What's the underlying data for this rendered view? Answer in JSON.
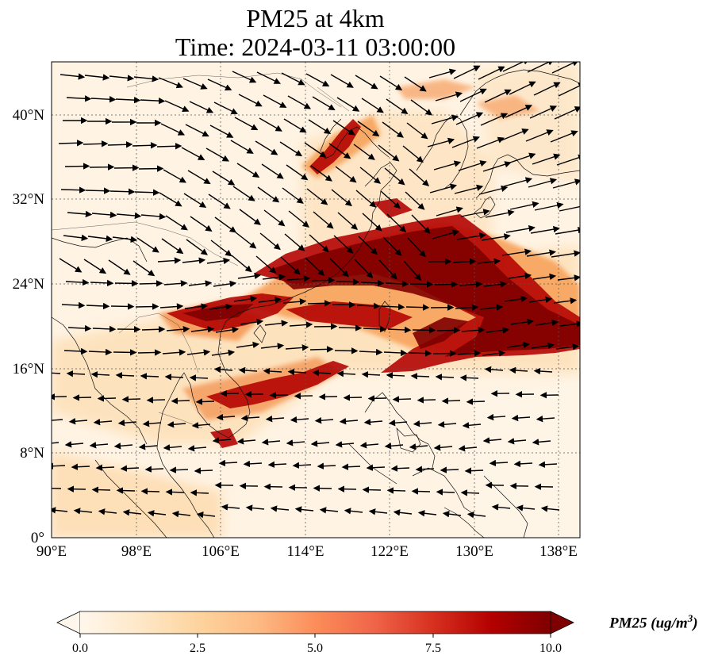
{
  "title": {
    "line1": "PM25 at 4km",
    "line2": "Time: 2024-03-11 03:00:00"
  },
  "map": {
    "projection": "PlateCarree",
    "lon_range": [
      90,
      140
    ],
    "lat_range": [
      0,
      44
    ],
    "gridlines": true,
    "lon_ticks": [
      "90°E",
      "98°E",
      "106°E",
      "114°E",
      "122°E",
      "130°E",
      "138°E"
    ],
    "lat_ticks": [
      "0°",
      "8°N",
      "16°N",
      "24°N",
      "32°N",
      "40°N"
    ],
    "field": "PM25",
    "vectors": "wind"
  },
  "colorbar": {
    "label_text": "PM25 (ug/m",
    "label_sup": "3",
    "label_close": ")",
    "ticks": [
      "0.0",
      "2.5",
      "5.0",
      "7.5",
      "10.0"
    ],
    "range": [
      0,
      10
    ],
    "colormap": "OrRd",
    "colors": [
      "#fff7ec",
      "#fee8c8",
      "#fdd49e",
      "#fdbb84",
      "#fc8d59",
      "#ef6548",
      "#d7301f",
      "#b30000",
      "#7f0000"
    ]
  }
}
